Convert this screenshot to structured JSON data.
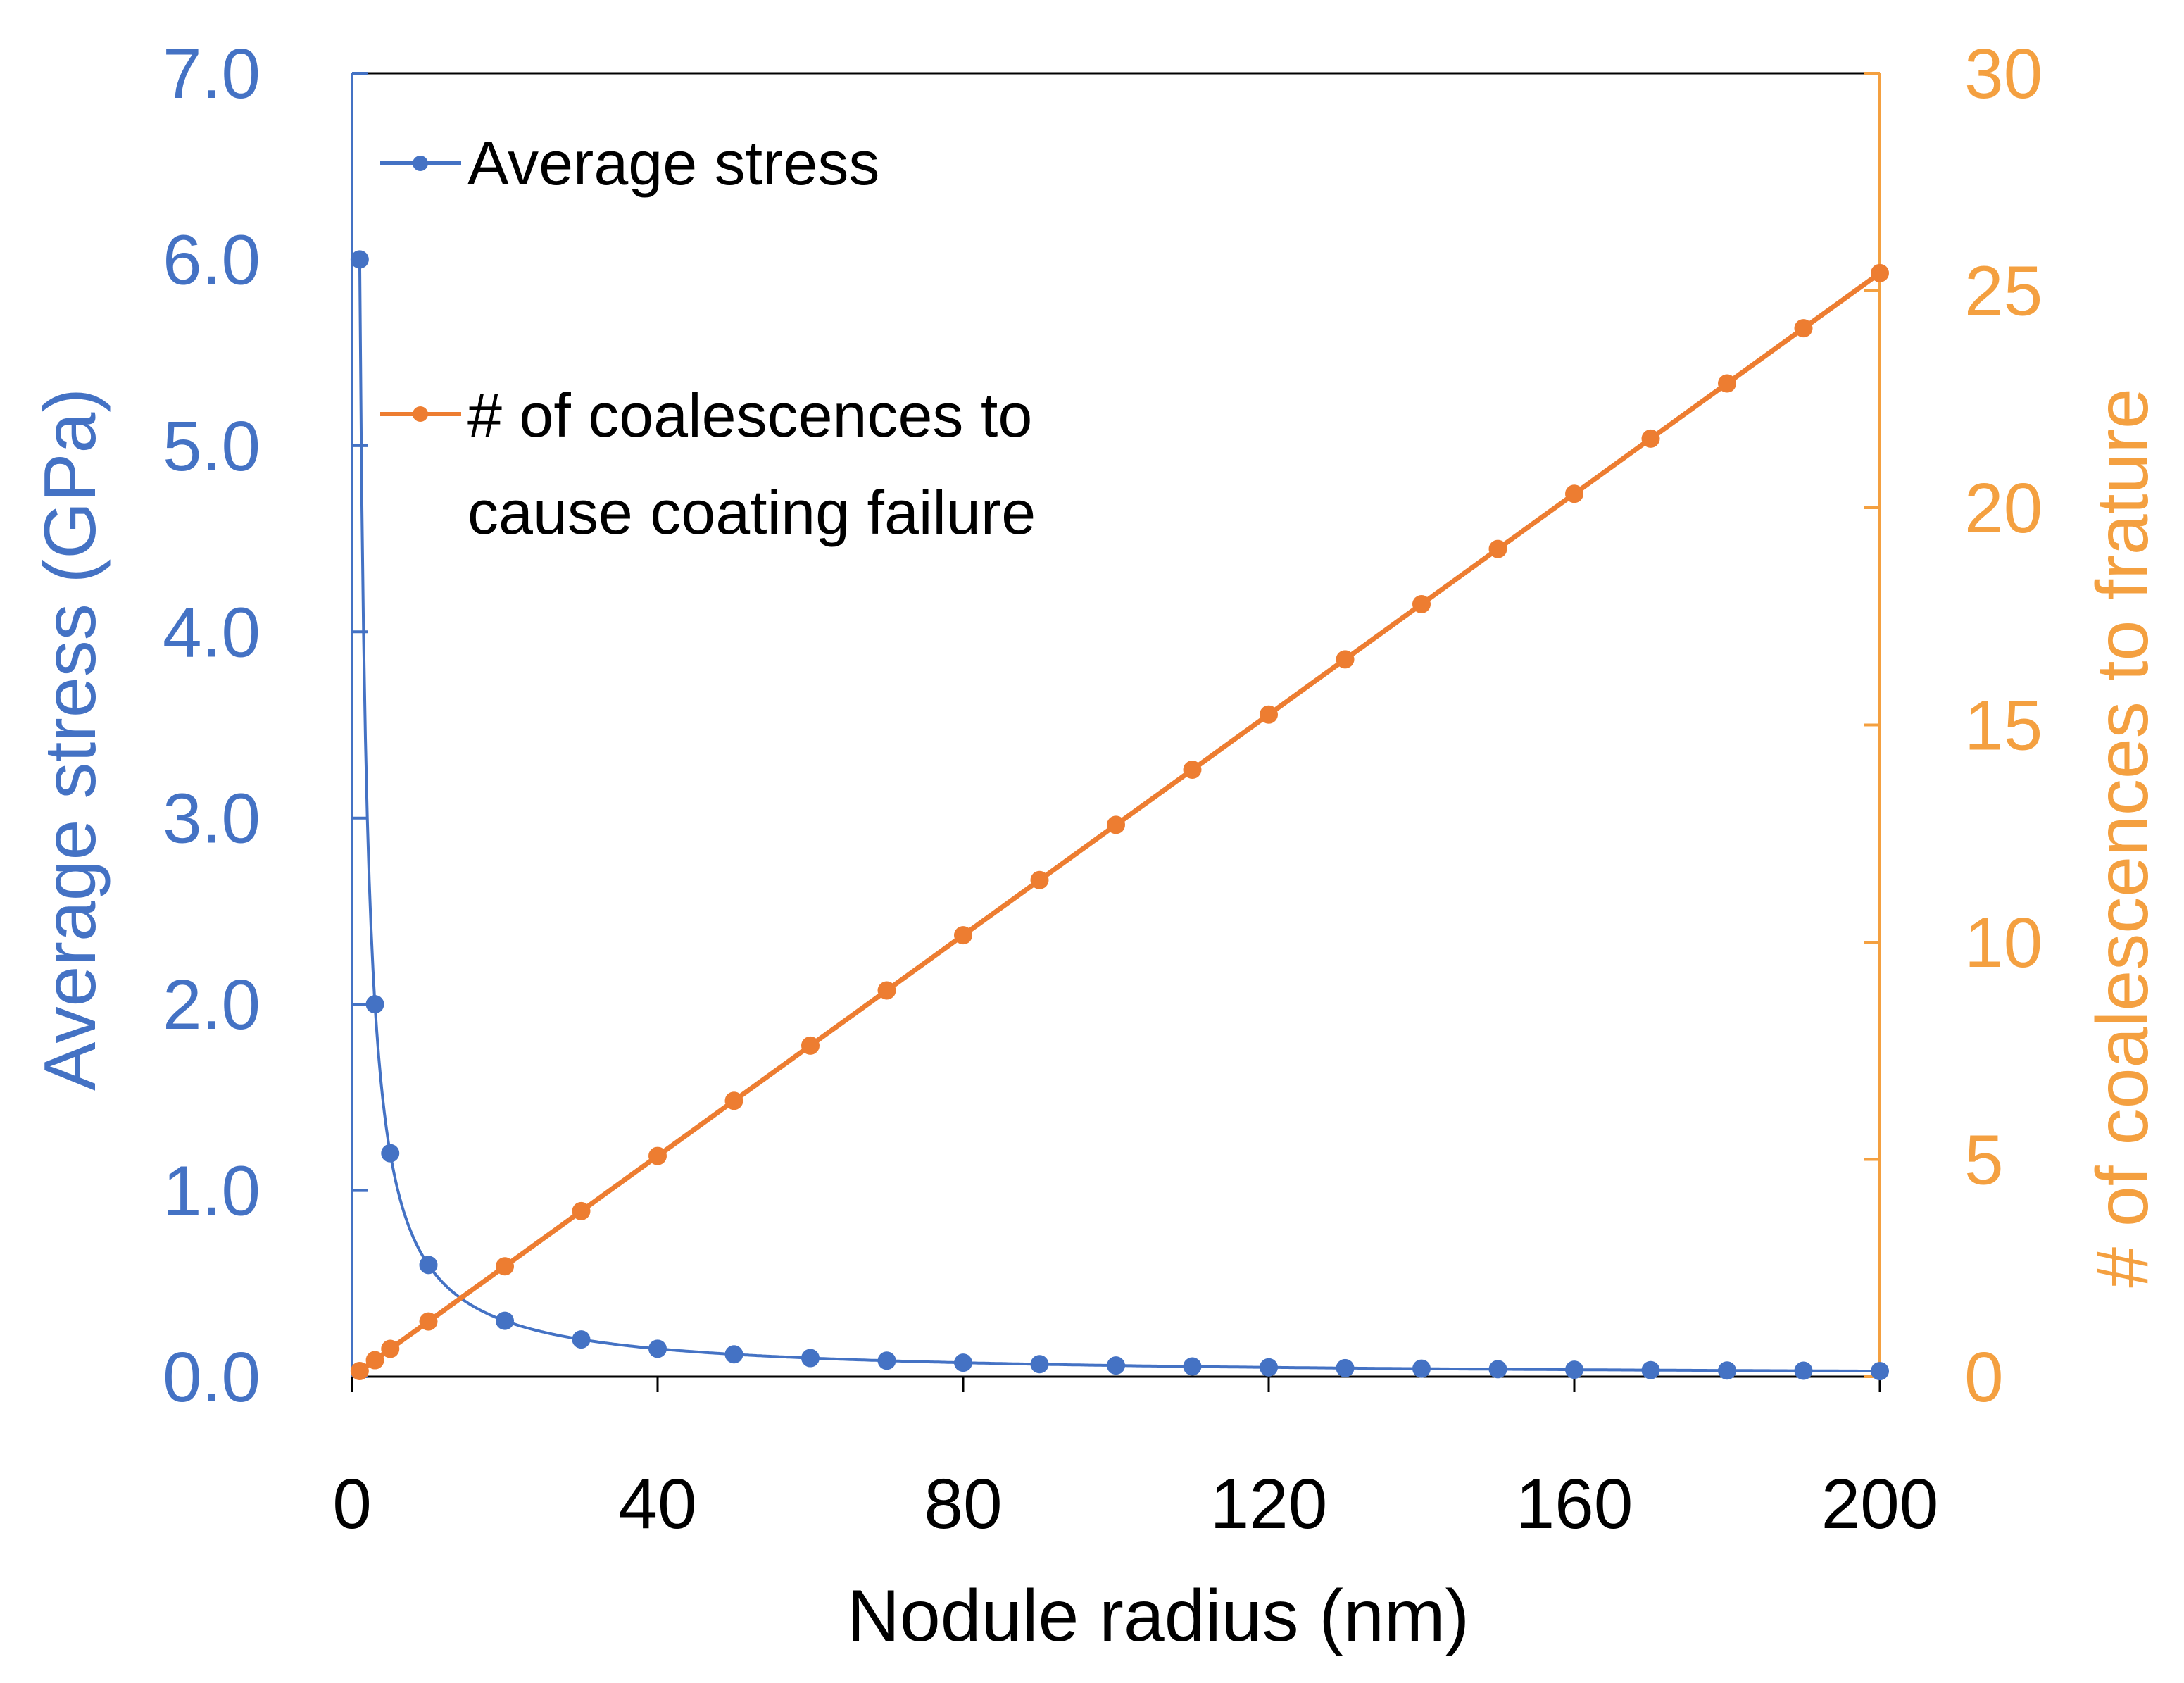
{
  "chart_data": {
    "type": "line",
    "title": "",
    "xlabel": "Nodule radius (nm)",
    "ylabel_left": "Average stress (GPa)",
    "ylabel_right": "# of coalescences to frature",
    "xlim": [
      0,
      200
    ],
    "ylim_left": [
      0,
      7
    ],
    "ylim_right": [
      0,
      30
    ],
    "x_ticks": [
      "0",
      "40",
      "80",
      "120",
      "160",
      "200"
    ],
    "x_tick_values": [
      0,
      40,
      80,
      120,
      160,
      200
    ],
    "y_left_ticks": [
      "0.0",
      "1.0",
      "2.0",
      "3.0",
      "4.0",
      "5.0",
      "6.0",
      "7.0"
    ],
    "y_left_tick_values": [
      0,
      1,
      2,
      3,
      4,
      5,
      6,
      7
    ],
    "y_right_ticks": [
      "0",
      "5",
      "10",
      "15",
      "20",
      "25",
      "30"
    ],
    "y_right_tick_values": [
      0,
      5,
      10,
      15,
      20,
      25,
      30
    ],
    "grid": false,
    "legend_position": "top-left",
    "colors": {
      "left_axis": "#4472C4",
      "right_axis": "#F4A040",
      "series_stress": "#4472C4",
      "series_coalescence": "#ED7D31",
      "frame": "#000000"
    },
    "series": [
      {
        "name": "Average stress",
        "axis": "left",
        "legend_lines": [
          "Average stress"
        ],
        "smooth": true,
        "x": [
          1,
          3,
          5,
          10,
          20,
          30,
          40,
          50,
          60,
          70,
          80,
          90,
          100,
          110,
          120,
          130,
          140,
          150,
          160,
          170,
          180,
          190,
          200
        ],
        "y": [
          6.0,
          2.0,
          1.2,
          0.6,
          0.3,
          0.2,
          0.15,
          0.12,
          0.1,
          0.086,
          0.075,
          0.067,
          0.06,
          0.055,
          0.05,
          0.046,
          0.043,
          0.04,
          0.0375,
          0.035,
          0.033,
          0.032,
          0.03
        ]
      },
      {
        "name": "# of coalescences to cause coating failure",
        "axis": "right",
        "legend_lines": [
          "# of coalescences to",
          "cause coating failure"
        ],
        "smooth": false,
        "x": [
          1,
          3,
          5,
          10,
          20,
          30,
          40,
          50,
          60,
          70,
          80,
          90,
          100,
          110,
          120,
          130,
          140,
          150,
          160,
          170,
          180,
          190,
          200
        ],
        "y": [
          0.13,
          0.38,
          0.64,
          1.27,
          2.54,
          3.81,
          5.08,
          6.35,
          7.62,
          8.89,
          10.16,
          11.43,
          12.7,
          13.97,
          15.24,
          16.51,
          17.78,
          19.05,
          20.32,
          21.59,
          22.86,
          24.13,
          25.4
        ]
      }
    ]
  }
}
